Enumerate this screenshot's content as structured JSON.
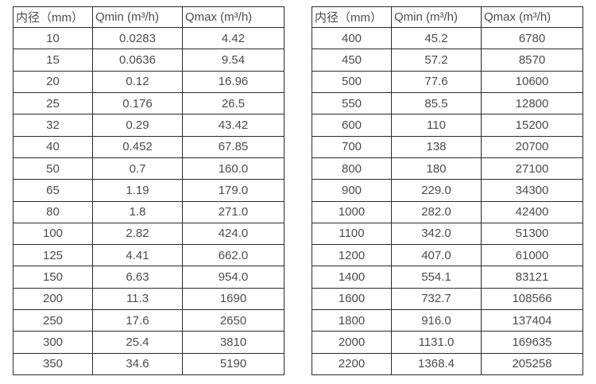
{
  "colors": {
    "border": "#2b2b2b",
    "text": "#4c4c4c",
    "background": "#ffffff"
  },
  "tables": [
    {
      "name": "flow-spec-table-small-diameters",
      "headers": [
        "内径（mm）",
        "Qmin (m³/h)",
        "Qmax (m³/h)"
      ],
      "rows": [
        [
          "10",
          "0.0283",
          "4.42"
        ],
        [
          "15",
          "0.0636",
          "9.54"
        ],
        [
          "20",
          "0.12",
          "16.96"
        ],
        [
          "25",
          "0.176",
          "26.5"
        ],
        [
          "32",
          "0.29",
          "43.42"
        ],
        [
          "40",
          "0.452",
          "67.85"
        ],
        [
          "50",
          "0.7",
          "160.0"
        ],
        [
          "65",
          "1.19",
          "179.0"
        ],
        [
          "80",
          "1.8",
          "271.0"
        ],
        [
          "100",
          "2.82",
          "424.0"
        ],
        [
          "125",
          "4.41",
          "662.0"
        ],
        [
          "150",
          "6.63",
          "954.0"
        ],
        [
          "200",
          "11.3",
          "1690"
        ],
        [
          "250",
          "17.6",
          "2650"
        ],
        [
          "300",
          "25.4",
          "3810"
        ],
        [
          "350",
          "34.6",
          "5190"
        ]
      ]
    },
    {
      "name": "flow-spec-table-large-diameters",
      "headers": [
        "内径（mm）",
        "Qmin (m³/h)",
        "Qmax (m³/h)"
      ],
      "rows": [
        [
          "400",
          "45.2",
          "6780"
        ],
        [
          "450",
          "57.2",
          "8570"
        ],
        [
          "500",
          "77.6",
          "10600"
        ],
        [
          "550",
          "85.5",
          "12800"
        ],
        [
          "600",
          "110",
          "15200"
        ],
        [
          "700",
          "138",
          "20700"
        ],
        [
          "800",
          "180",
          "27100"
        ],
        [
          "900",
          "229.0",
          "34300"
        ],
        [
          "1000",
          "282.0",
          "42400"
        ],
        [
          "1100",
          "342.0",
          "51300"
        ],
        [
          "1200",
          "407.0",
          "61000"
        ],
        [
          "1400",
          "554.1",
          "83121"
        ],
        [
          "1600",
          "732.7",
          "108566"
        ],
        [
          "1800",
          "916.0",
          "137404"
        ],
        [
          "2000",
          "1131.0",
          "169635"
        ],
        [
          "2200",
          "1368.4",
          "205258"
        ]
      ]
    }
  ]
}
